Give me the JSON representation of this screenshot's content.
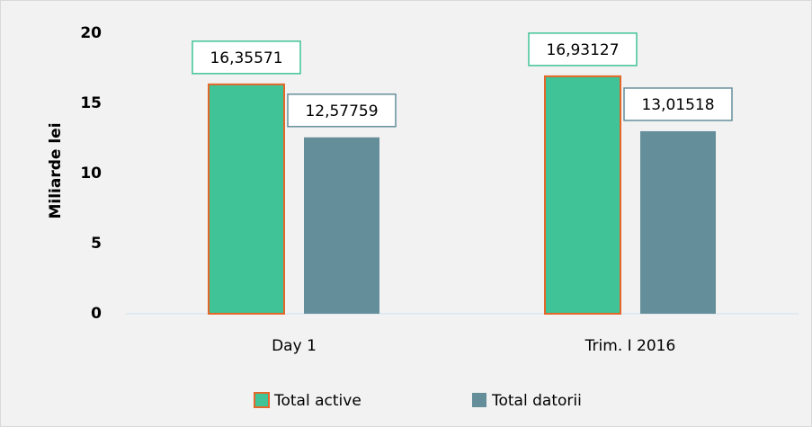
{
  "chart_data": {
    "type": "bar",
    "ylabel": "Miliarde lei",
    "categories": [
      "Day 1",
      "Trim. I 2016"
    ],
    "series": [
      {
        "name": "Total active",
        "color": "#40c397",
        "edgecolor": "#e4672a",
        "values": [
          16.35571,
          16.93127
        ],
        "value_labels": [
          "16,35571",
          "16,93127"
        ]
      },
      {
        "name": "Total datorii",
        "color": "#648f9a",
        "values": [
          12.57759,
          13.01518
        ],
        "value_labels": [
          "12,57759",
          "13,01518"
        ]
      }
    ],
    "ylim": [
      0,
      20
    ],
    "yticks": [
      0,
      5,
      10,
      15,
      20
    ],
    "grid": false,
    "legend": "bottom"
  }
}
